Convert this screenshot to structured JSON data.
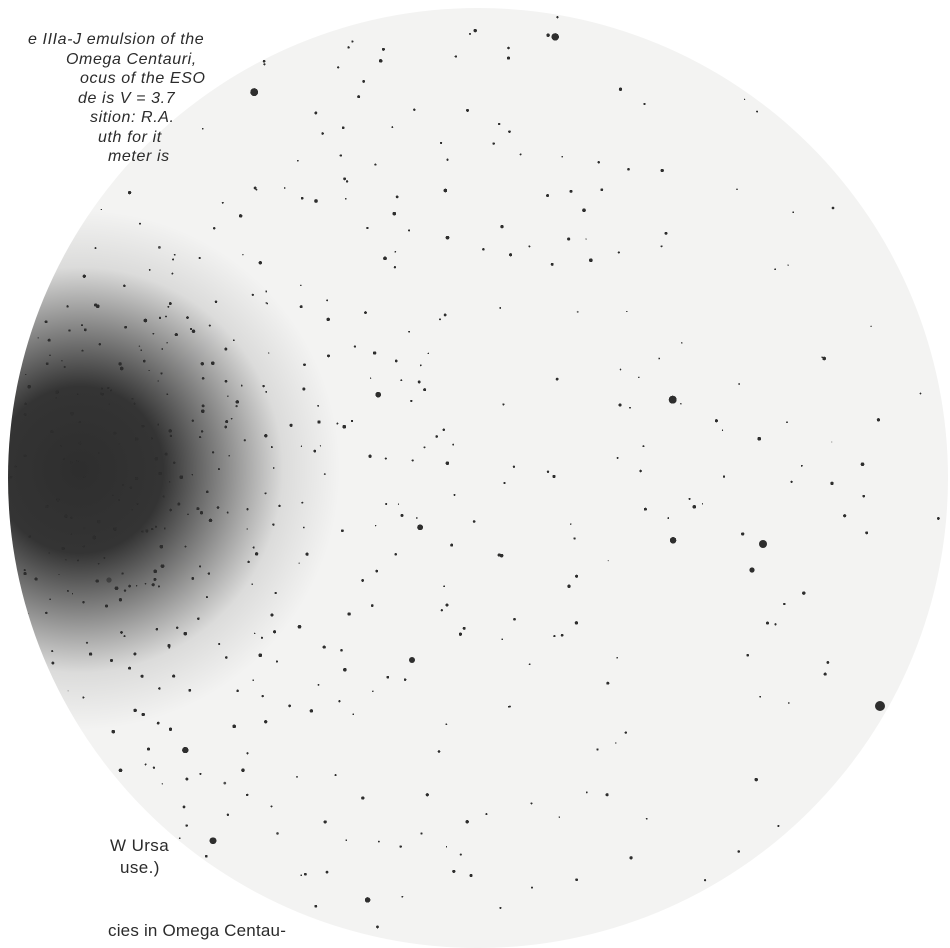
{
  "figure": {
    "subject": "star field photograph",
    "plate_color": "#f3f3f2",
    "ink_color": "#2e2e2e"
  },
  "captions": {
    "italic_lines": [
      "e IIIa-J emulsion of the",
      "Omega  Centauri,",
      "ocus of the ESO",
      "de is V = 3.7",
      "sition: R.A.",
      "uth for it",
      "meter is"
    ],
    "side_lines": [
      "W  Ursa",
      "use.)"
    ],
    "body_line": "cies in Omega Centau-"
  }
}
